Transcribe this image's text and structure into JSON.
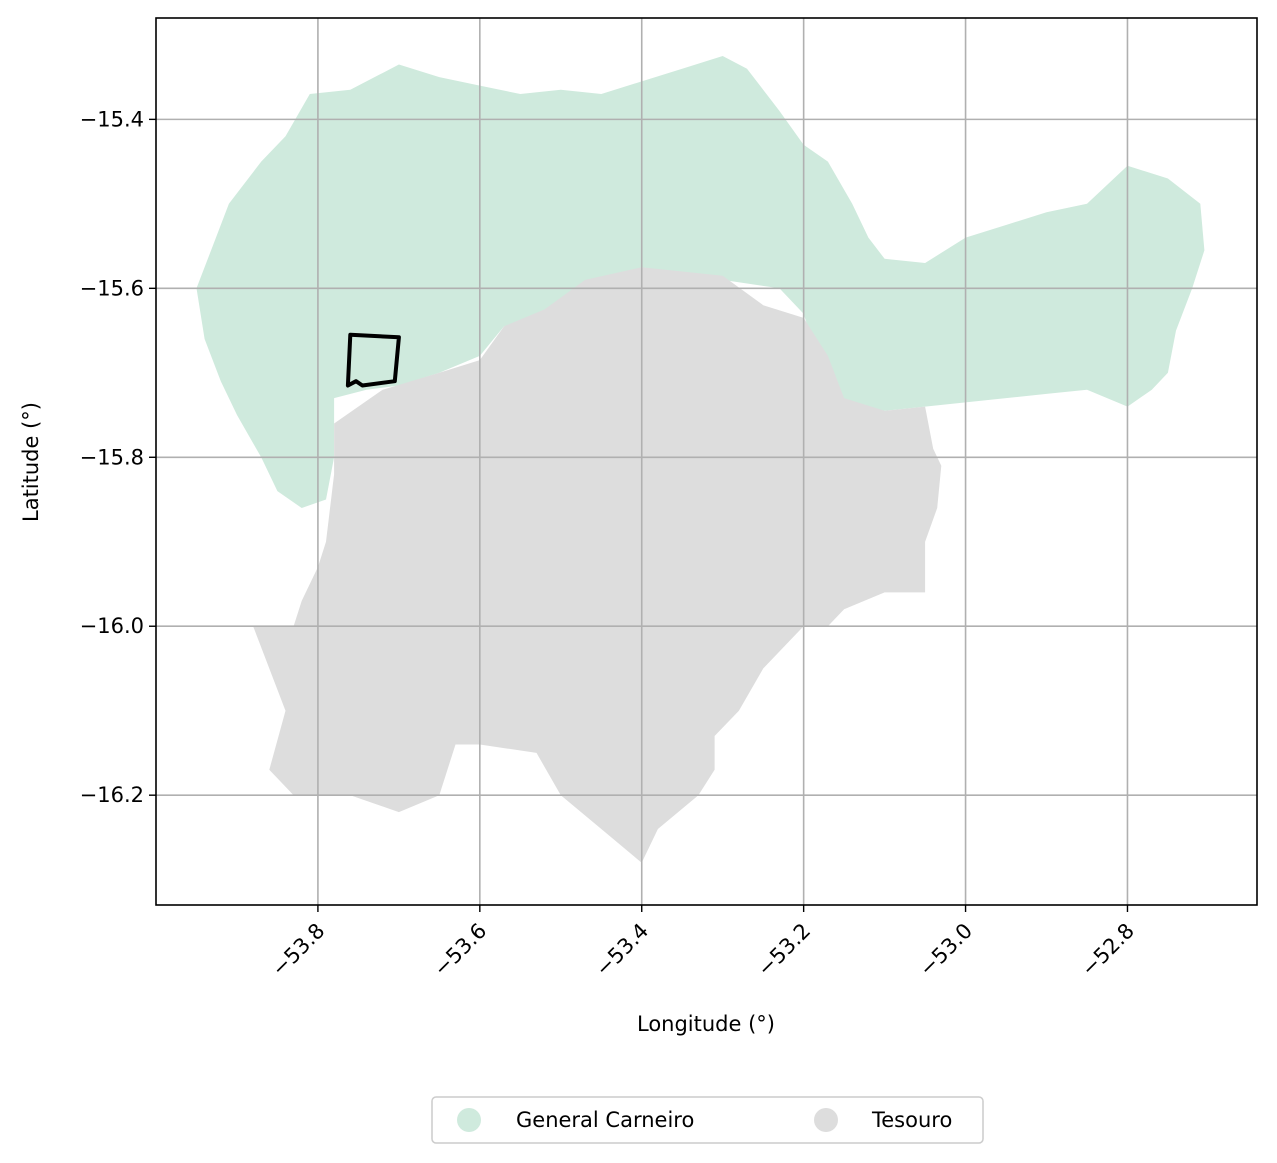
{
  "chart_data": {
    "type": "map",
    "xlabel": "Longitude (°)",
    "ylabel": "Latitude (°)",
    "xlim": [
      -54.0,
      -52.64
    ],
    "ylim": [
      -16.33,
      -15.28
    ],
    "xticks": [
      -53.8,
      -53.6,
      -53.4,
      -53.2,
      -53.0,
      -52.8
    ],
    "xtick_labels": [
      "−53.8",
      "−53.6",
      "−53.4",
      "−53.2",
      "−53.0",
      "−52.8"
    ],
    "yticks": [
      -15.4,
      -15.6,
      -15.8,
      -16.0,
      -16.2
    ],
    "ytick_labels": [
      "−15.4",
      "−15.6",
      "−15.8",
      "−16.0",
      "−16.2"
    ],
    "grid": true,
    "legend": {
      "placement": "bottom-center",
      "entries": [
        {
          "label": "General Carneiro",
          "color": "#cfeadd"
        },
        {
          "label": "Tesouro",
          "color": "#dddddd"
        }
      ]
    },
    "regions": [
      {
        "name": "General Carneiro",
        "color": "#cfeadd",
        "outline": [
          [
            -53.81,
            -15.37
          ],
          [
            -53.76,
            -15.365
          ],
          [
            -53.7,
            -15.335
          ],
          [
            -53.65,
            -15.35
          ],
          [
            -53.6,
            -15.36
          ],
          [
            -53.55,
            -15.37
          ],
          [
            -53.5,
            -15.365
          ],
          [
            -53.45,
            -15.37
          ],
          [
            -53.4,
            -15.355
          ],
          [
            -53.35,
            -15.34
          ],
          [
            -53.3,
            -15.325
          ],
          [
            -53.27,
            -15.34
          ],
          [
            -53.23,
            -15.39
          ],
          [
            -53.2,
            -15.43
          ],
          [
            -53.17,
            -15.45
          ],
          [
            -53.14,
            -15.5
          ],
          [
            -53.12,
            -15.54
          ],
          [
            -53.1,
            -15.565
          ],
          [
            -53.05,
            -15.57
          ],
          [
            -53.0,
            -15.54
          ],
          [
            -52.95,
            -15.525
          ],
          [
            -52.9,
            -15.51
          ],
          [
            -52.85,
            -15.5
          ],
          [
            -52.8,
            -15.455
          ],
          [
            -52.75,
            -15.47
          ],
          [
            -52.71,
            -15.5
          ],
          [
            -52.705,
            -15.555
          ],
          [
            -52.72,
            -15.6
          ],
          [
            -52.74,
            -15.65
          ],
          [
            -52.75,
            -15.7
          ],
          [
            -52.77,
            -15.72
          ],
          [
            -52.8,
            -15.74
          ],
          [
            -52.85,
            -15.72
          ],
          [
            -52.9,
            -15.725
          ],
          [
            -52.95,
            -15.73
          ],
          [
            -53.0,
            -15.735
          ],
          [
            -53.05,
            -15.74
          ],
          [
            -53.1,
            -15.745
          ],
          [
            -53.15,
            -15.735
          ],
          [
            -53.18,
            -15.69
          ],
          [
            -53.2,
            -15.63
          ],
          [
            -53.23,
            -15.6
          ],
          [
            -53.3,
            -15.59
          ],
          [
            -53.4,
            -15.575
          ],
          [
            -53.45,
            -15.595
          ],
          [
            -53.5,
            -15.63
          ],
          [
            -53.57,
            -15.645
          ],
          [
            -53.6,
            -15.68
          ],
          [
            -53.65,
            -15.7
          ],
          [
            -53.7,
            -15.715
          ],
          [
            -53.74,
            -15.72
          ],
          [
            -53.78,
            -15.73
          ],
          [
            -53.78,
            -15.8
          ],
          [
            -53.79,
            -15.85
          ],
          [
            -53.82,
            -15.86
          ],
          [
            -53.85,
            -15.84
          ],
          [
            -53.87,
            -15.8
          ],
          [
            -53.9,
            -15.75
          ],
          [
            -53.92,
            -15.71
          ],
          [
            -53.94,
            -15.66
          ],
          [
            -53.95,
            -15.6
          ],
          [
            -53.93,
            -15.55
          ],
          [
            -53.91,
            -15.5
          ],
          [
            -53.87,
            -15.45
          ],
          [
            -53.84,
            -15.42
          ]
        ]
      },
      {
        "name": "Tesouro",
        "color": "#dddddd",
        "outline": [
          [
            -53.47,
            -15.59
          ],
          [
            -53.4,
            -15.575
          ],
          [
            -53.3,
            -15.585
          ],
          [
            -53.25,
            -15.62
          ],
          [
            -53.2,
            -15.635
          ],
          [
            -53.17,
            -15.68
          ],
          [
            -53.15,
            -15.73
          ],
          [
            -53.1,
            -15.745
          ],
          [
            -53.05,
            -15.74
          ],
          [
            -53.04,
            -15.79
          ],
          [
            -53.03,
            -15.81
          ],
          [
            -53.035,
            -15.86
          ],
          [
            -53.05,
            -15.9
          ],
          [
            -53.05,
            -15.96
          ],
          [
            -53.1,
            -15.96
          ],
          [
            -53.15,
            -15.98
          ],
          [
            -53.17,
            -16.0
          ],
          [
            -53.2,
            -16.0
          ],
          [
            -53.25,
            -16.05
          ],
          [
            -53.28,
            -16.1
          ],
          [
            -53.31,
            -16.13
          ],
          [
            -53.31,
            -16.17
          ],
          [
            -53.33,
            -16.2
          ],
          [
            -53.38,
            -16.24
          ],
          [
            -53.4,
            -16.28
          ],
          [
            -53.45,
            -16.24
          ],
          [
            -53.5,
            -16.2
          ],
          [
            -53.53,
            -16.15
          ],
          [
            -53.6,
            -16.14
          ],
          [
            -53.63,
            -16.14
          ],
          [
            -53.65,
            -16.2
          ],
          [
            -53.7,
            -16.22
          ],
          [
            -53.76,
            -16.2
          ],
          [
            -53.83,
            -16.2
          ],
          [
            -53.86,
            -16.17
          ],
          [
            -53.84,
            -16.1
          ],
          [
            -53.86,
            -16.05
          ],
          [
            -53.88,
            -16.0
          ],
          [
            -53.83,
            -16.0
          ],
          [
            -53.82,
            -15.97
          ],
          [
            -53.8,
            -15.93
          ],
          [
            -53.79,
            -15.9
          ],
          [
            -53.78,
            -15.82
          ],
          [
            -53.78,
            -15.76
          ],
          [
            -53.72,
            -15.72
          ],
          [
            -53.65,
            -15.7
          ],
          [
            -53.6,
            -15.685
          ],
          [
            -53.57,
            -15.645
          ],
          [
            -53.52,
            -15.625
          ]
        ]
      }
    ],
    "highlight_polygon": [
      [
        -53.76,
        -15.655
      ],
      [
        -53.7,
        -15.658
      ],
      [
        -53.705,
        -15.71
      ],
      [
        -53.745,
        -15.715
      ],
      [
        -53.753,
        -15.71
      ],
      [
        -53.763,
        -15.715
      ]
    ]
  }
}
